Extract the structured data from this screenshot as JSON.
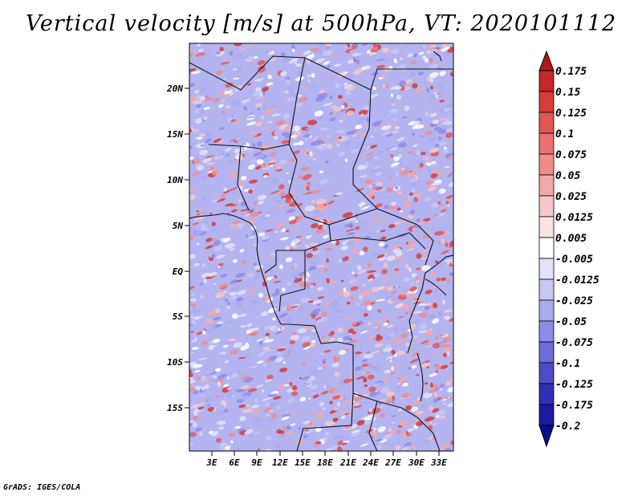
{
  "title": "Vertical velocity [m/s] at 500hPa, VT: 2020101112",
  "footer": "GrADS: IGES/COLA",
  "map": {
    "lat_labels": [
      "20N",
      "15N",
      "10N",
      "5N",
      "EQ",
      "5S",
      "10S",
      "15S"
    ],
    "lon_labels": [
      "3E",
      "6E",
      "9E",
      "12E",
      "15E",
      "18E",
      "21E",
      "24E",
      "27E",
      "30E",
      "33E"
    ]
  },
  "colorbar": {
    "labels": [
      "0.175",
      "0.15",
      "0.125",
      "0.1",
      "0.075",
      "0.05",
      "0.025",
      "0.0125",
      "0.005",
      "-0.005",
      "-0.0125",
      "-0.025",
      "-0.05",
      "-0.075",
      "-0.1",
      "-0.125",
      "-0.175",
      "-0.2"
    ],
    "colors": [
      "#b01818",
      "#c42828",
      "#d63c3c",
      "#e25656",
      "#ea7070",
      "#f08c8c",
      "#f4a8a8",
      "#f8c8c8",
      "#fce4e4",
      "#ffffff",
      "#e2e2fc",
      "#c8c8f6",
      "#aaaaf0",
      "#8c8ce6",
      "#6c6cdc",
      "#4c4cc8",
      "#3030b4",
      "#1a1aa0",
      "#0c0c8c"
    ]
  }
}
